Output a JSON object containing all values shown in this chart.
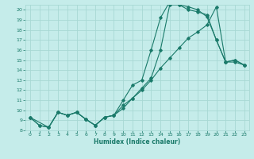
{
  "xlabel": "Humidex (Indice chaleur)",
  "bg_color": "#c5ecea",
  "grid_color": "#a8d8d4",
  "line_color": "#1a7a6a",
  "xlim": [
    -0.5,
    23.5
  ],
  "ylim": [
    8,
    20.5
  ],
  "xticks": [
    0,
    1,
    2,
    3,
    4,
    5,
    6,
    7,
    8,
    9,
    10,
    11,
    12,
    13,
    14,
    15,
    16,
    17,
    18,
    19,
    20,
    21,
    22,
    23
  ],
  "yticks": [
    8,
    9,
    10,
    11,
    12,
    13,
    14,
    15,
    16,
    17,
    18,
    19,
    20
  ],
  "line1_x": [
    0,
    1,
    2,
    3,
    4,
    5,
    6,
    7,
    8,
    9,
    10,
    11,
    12,
    13,
    14,
    15,
    16,
    17,
    18,
    19,
    20,
    21,
    22,
    23
  ],
  "line1_y": [
    9.3,
    8.5,
    8.3,
    9.8,
    9.5,
    9.8,
    9.1,
    8.5,
    9.3,
    9.5,
    11.0,
    12.5,
    13.0,
    16.0,
    19.2,
    20.8,
    20.5,
    20.3,
    20.0,
    19.3,
    17.0,
    14.8,
    15.0,
    14.5
  ],
  "line2_x": [
    0,
    1,
    2,
    3,
    4,
    5,
    6,
    7,
    8,
    9,
    10,
    11,
    12,
    13,
    14,
    15,
    16,
    17,
    18,
    19,
    20,
    21,
    22,
    23
  ],
  "line2_y": [
    9.3,
    8.5,
    8.3,
    9.8,
    9.5,
    9.8,
    9.1,
    8.5,
    9.3,
    9.5,
    10.2,
    11.2,
    12.2,
    13.2,
    16.0,
    20.5,
    20.5,
    20.0,
    19.8,
    19.5,
    17.0,
    14.8,
    15.0,
    14.5
  ],
  "line3_x": [
    0,
    2,
    3,
    4,
    5,
    6,
    7,
    8,
    9,
    10,
    11,
    12,
    13,
    14,
    15,
    16,
    17,
    18,
    19,
    20,
    21,
    22,
    23
  ],
  "line3_y": [
    9.3,
    8.3,
    9.8,
    9.5,
    9.8,
    9.1,
    8.5,
    9.3,
    9.5,
    10.5,
    11.2,
    12.0,
    13.0,
    14.2,
    15.2,
    16.2,
    17.2,
    17.8,
    18.5,
    20.3,
    14.8,
    14.8,
    14.5
  ]
}
